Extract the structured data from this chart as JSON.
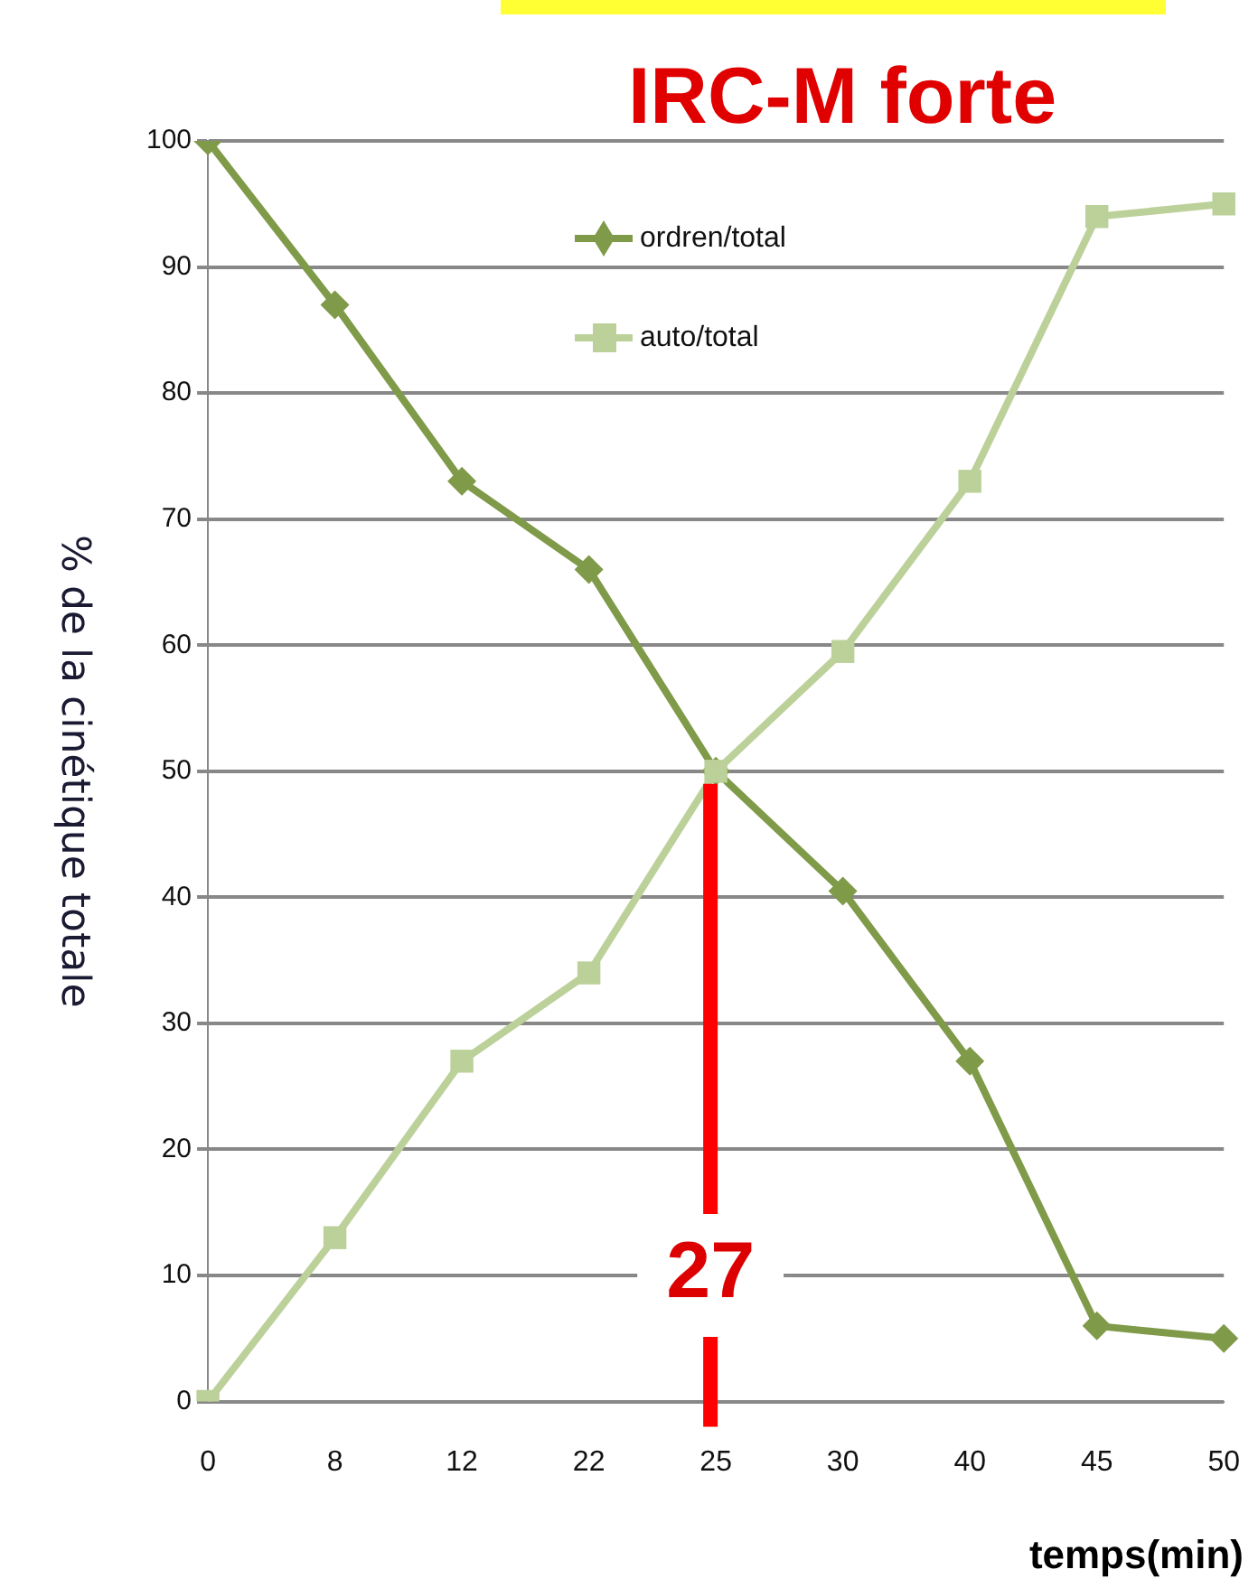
{
  "chart_data": {
    "type": "line",
    "title": "IRC-M forte",
    "xlabel": "temps(min)",
    "ylabel": "% de la cinétique totale",
    "categories": [
      "0",
      "8",
      "12",
      "22",
      "25",
      "30",
      "40",
      "45",
      "50"
    ],
    "series": [
      {
        "name": "ordren/total",
        "color": "#7f9a48",
        "marker": "diamond",
        "values": [
          100,
          87,
          73,
          66,
          50,
          40.5,
          27,
          6,
          5
        ]
      },
      {
        "name": "auto/total",
        "color": "#bcd19a",
        "marker": "square",
        "values": [
          0,
          13,
          27,
          34,
          50,
          59.5,
          73,
          94,
          95
        ]
      }
    ],
    "ylim": [
      0,
      100
    ],
    "yticks": [
      0,
      10,
      20,
      30,
      40,
      50,
      60,
      70,
      80,
      90,
      100
    ],
    "grid": "y",
    "legend": "top",
    "ref_lines": [
      {
        "axis": "x",
        "value": "25",
        "label": "27",
        "color": "#ff0000"
      }
    ]
  }
}
